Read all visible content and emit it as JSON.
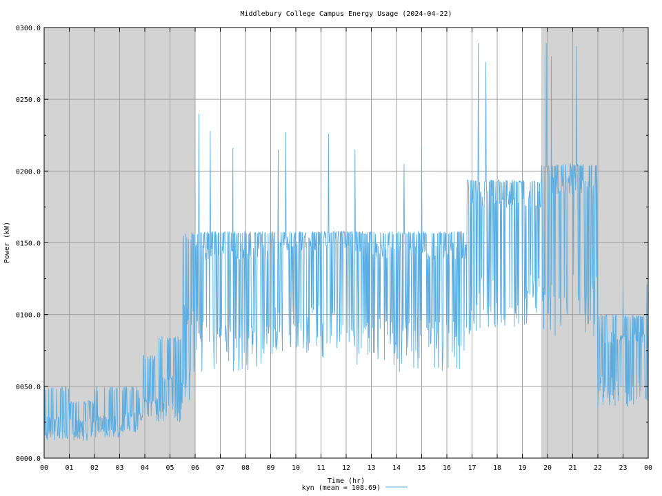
{
  "chart_data": {
    "type": "line",
    "title": "Middlebury College Campus Energy Usage (2024-04-22)",
    "xlabel": "Time (hr)",
    "ylabel": "Power (kW)",
    "xlim": [
      0,
      24
    ],
    "ylim": [
      0,
      300
    ],
    "x_ticks": [
      0,
      1,
      2,
      3,
      4,
      5,
      6,
      7,
      8,
      9,
      10,
      11,
      12,
      13,
      14,
      15,
      16,
      17,
      18,
      19,
      20,
      21,
      22,
      23,
      24
    ],
    "x_tick_labels": [
      "00",
      "01",
      "02",
      "03",
      "04",
      "05",
      "06",
      "07",
      "08",
      "09",
      "10",
      "11",
      "12",
      "13",
      "14",
      "15",
      "16",
      "17",
      "18",
      "19",
      "20",
      "21",
      "22",
      "23",
      "00"
    ],
    "y_ticks": [
      0,
      50,
      100,
      150,
      200,
      250,
      300
    ],
    "y_tick_labels": [
      "0000.0",
      "0050.0",
      "0100.0",
      "0150.0",
      "0200.0",
      "0250.0",
      "0300.0"
    ],
    "grid": true,
    "legend": "bottom-center",
    "shaded_intervals": [
      [
        0,
        6
      ],
      [
        19.75,
        24
      ]
    ],
    "colors": {
      "series": "#5aade2",
      "shading": "#d3d3d3",
      "grid": "#a0a0a0",
      "axes": "#000000"
    },
    "series": [
      {
        "name": "kyn (mean = 108.69)",
        "segments": [
          {
            "start": 0.0,
            "end": 1.0,
            "low": 12,
            "high": 50,
            "base": 28
          },
          {
            "start": 1.0,
            "end": 2.0,
            "low": 12,
            "high": 40,
            "base": 26
          },
          {
            "start": 2.0,
            "end": 3.0,
            "low": 14,
            "high": 50,
            "base": 28
          },
          {
            "start": 3.0,
            "end": 3.75,
            "low": 18,
            "high": 50,
            "base": 30
          },
          {
            "start": 3.75,
            "end": 4.5,
            "low": 25,
            "high": 72,
            "base": 40
          },
          {
            "start": 4.5,
            "end": 5.5,
            "low": 25,
            "high": 85,
            "base": 55
          },
          {
            "start": 5.5,
            "end": 6.0,
            "low": 40,
            "high": 158,
            "base": 100
          },
          {
            "start": 6.0,
            "end": 9.0,
            "low": 60,
            "high": 158,
            "base": 144
          },
          {
            "start": 9.0,
            "end": 12.0,
            "low": 70,
            "high": 158,
            "base": 150
          },
          {
            "start": 12.0,
            "end": 16.8,
            "low": 60,
            "high": 158,
            "base": 144
          },
          {
            "start": 16.8,
            "end": 19.75,
            "low": 85,
            "high": 194,
            "base": 180
          },
          {
            "start": 19.75,
            "end": 22.0,
            "low": 85,
            "high": 205,
            "base": 190
          },
          {
            "start": 22.0,
            "end": 24.0,
            "low": 35,
            "high": 100,
            "base": 84
          }
        ],
        "peaks": [
          {
            "x": 6.15,
            "y": 240
          },
          {
            "x": 6.6,
            "y": 228
          },
          {
            "x": 7.5,
            "y": 216
          },
          {
            "x": 9.3,
            "y": 215
          },
          {
            "x": 9.6,
            "y": 227
          },
          {
            "x": 11.3,
            "y": 226
          },
          {
            "x": 12.35,
            "y": 215
          },
          {
            "x": 14.3,
            "y": 205
          },
          {
            "x": 15.0,
            "y": 217
          },
          {
            "x": 17.25,
            "y": 289
          },
          {
            "x": 17.55,
            "y": 276
          },
          {
            "x": 19.95,
            "y": 289
          },
          {
            "x": 20.15,
            "y": 280
          },
          {
            "x": 21.15,
            "y": 287
          },
          {
            "x": 23.0,
            "y": 120
          },
          {
            "x": 23.95,
            "y": 121
          }
        ]
      }
    ]
  }
}
